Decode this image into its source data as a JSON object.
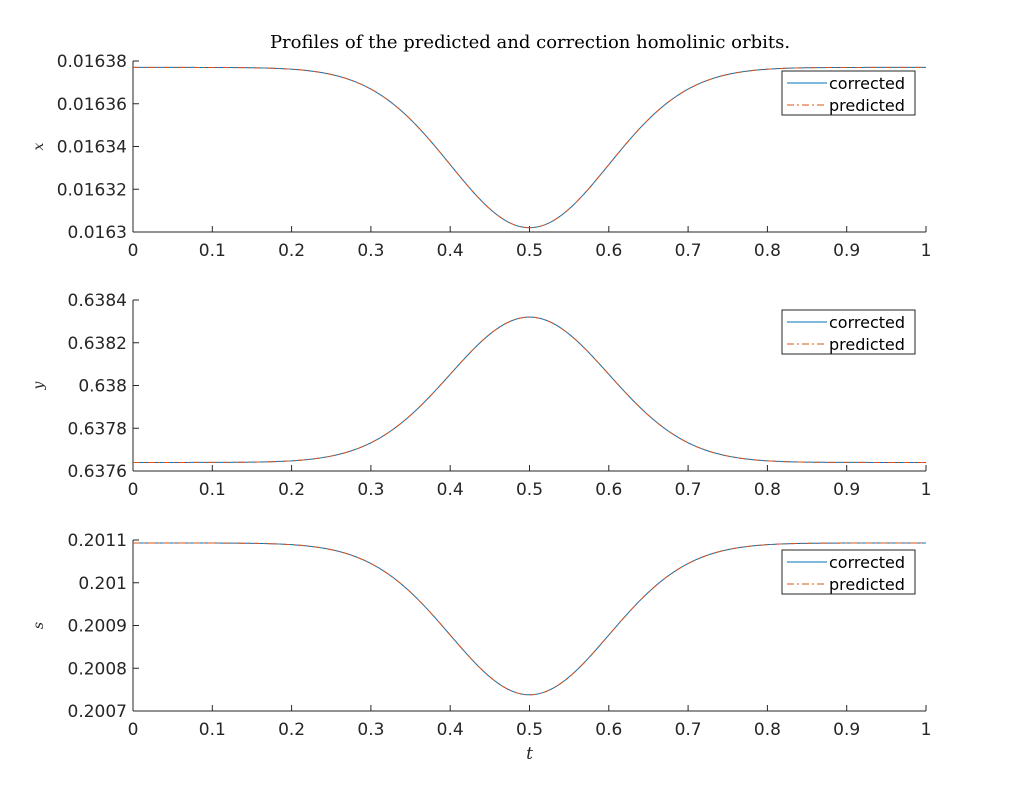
{
  "title": "Profiles of the predicted and correction homolinic orbits.",
  "colors": {
    "corrected": "#0072BD",
    "predicted": "#D95319",
    "axis": "#262626"
  },
  "chart_data": [
    {
      "type": "line",
      "ylabel": "x",
      "xlabel": "",
      "xlim": [
        0,
        1
      ],
      "ylim": [
        0.0163,
        0.01638
      ],
      "x_ticks": [
        "0",
        "0.1",
        "0.2",
        "0.3",
        "0.4",
        "0.5",
        "0.6",
        "0.7",
        "0.8",
        "0.9",
        "1"
      ],
      "y_ticks": [
        "0.0163",
        "0.01632",
        "0.01634",
        "0.01636",
        "0.01638"
      ],
      "legend": [
        "corrected",
        "predicted"
      ],
      "legend_position": "top-right",
      "baseline": 0.016377,
      "peak": 0.016302,
      "sigma": 0.1,
      "x": [
        0,
        0.1,
        0.2,
        0.3,
        0.4,
        0.5,
        0.6,
        0.7,
        0.8,
        0.9,
        1
      ],
      "series": [
        {
          "name": "corrected",
          "style": "solid",
          "values": [
            0.016377,
            0.016377,
            0.016376,
            0.016368,
            0.016335,
            0.016302,
            0.016335,
            0.016368,
            0.016376,
            0.016377,
            0.016377
          ]
        },
        {
          "name": "predicted",
          "style": "dashdot",
          "values": [
            0.016377,
            0.016377,
            0.016376,
            0.016368,
            0.016335,
            0.016302,
            0.016335,
            0.016368,
            0.016376,
            0.016377,
            0.016377
          ]
        }
      ]
    },
    {
      "type": "line",
      "ylabel": "y",
      "xlabel": "",
      "xlim": [
        0,
        1
      ],
      "ylim": [
        0.6376,
        0.6384
      ],
      "x_ticks": [
        "0",
        "0.1",
        "0.2",
        "0.3",
        "0.4",
        "0.5",
        "0.6",
        "0.7",
        "0.8",
        "0.9",
        "1"
      ],
      "y_ticks": [
        "0.6376",
        "0.6378",
        "0.638",
        "0.6382",
        "0.6384"
      ],
      "legend": [
        "corrected",
        "predicted"
      ],
      "legend_position": "top-right",
      "baseline": 0.63764,
      "peak": 0.63832,
      "sigma": 0.1,
      "x": [
        0,
        0.1,
        0.2,
        0.3,
        0.4,
        0.5,
        0.6,
        0.7,
        0.8,
        0.9,
        1
      ],
      "series": [
        {
          "name": "corrected",
          "style": "solid",
          "values": [
            0.63764,
            0.63764,
            0.63766,
            0.63773,
            0.63803,
            0.63832,
            0.63803,
            0.63773,
            0.63766,
            0.63764,
            0.63764
          ]
        },
        {
          "name": "predicted",
          "style": "dashdot",
          "values": [
            0.63764,
            0.63764,
            0.63766,
            0.63773,
            0.63803,
            0.63832,
            0.63803,
            0.63773,
            0.63766,
            0.63764,
            0.63764
          ]
        }
      ]
    },
    {
      "type": "line",
      "ylabel": "s",
      "xlabel": "t",
      "xlim": [
        0,
        1
      ],
      "ylim": [
        0.2007,
        0.2011
      ],
      "x_ticks": [
        "0",
        "0.1",
        "0.2",
        "0.3",
        "0.4",
        "0.5",
        "0.6",
        "0.7",
        "0.8",
        "0.9",
        "1"
      ],
      "y_ticks": [
        "0.2007",
        "0.2008",
        "0.2009",
        "0.201",
        "0.2011"
      ],
      "legend": [
        "corrected",
        "predicted"
      ],
      "legend_position": "top-right",
      "baseline": 0.201093,
      "peak": 0.200738,
      "sigma": 0.1,
      "x": [
        0,
        0.1,
        0.2,
        0.3,
        0.4,
        0.5,
        0.6,
        0.7,
        0.8,
        0.9,
        1
      ],
      "series": [
        {
          "name": "corrected",
          "style": "solid",
          "values": [
            0.201093,
            0.201092,
            0.201085,
            0.201048,
            0.20089,
            0.200738,
            0.20089,
            0.201048,
            0.201085,
            0.201092,
            0.201093
          ]
        },
        {
          "name": "predicted",
          "style": "dashdot",
          "values": [
            0.201093,
            0.201092,
            0.201085,
            0.201048,
            0.20089,
            0.200738,
            0.20089,
            0.201048,
            0.201085,
            0.201092,
            0.201093
          ]
        }
      ]
    }
  ]
}
